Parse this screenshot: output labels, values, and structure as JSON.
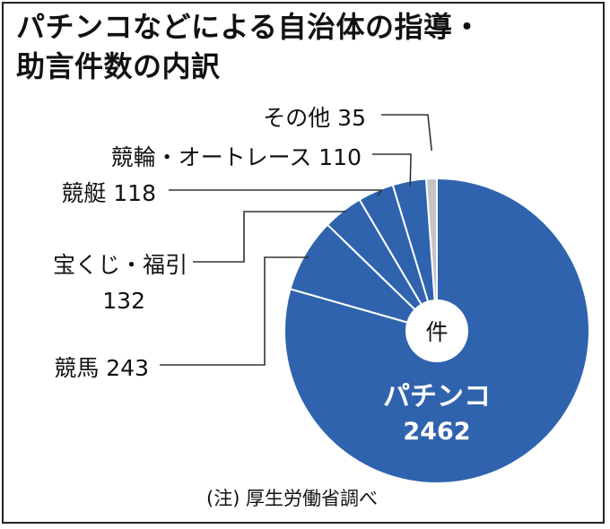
{
  "title_line1": "パチンコなどによる自治体の指導・",
  "title_line2": "助言件数の内訳",
  "source": "(注) 厚生労働省調べ",
  "center_label": "件",
  "colors": {
    "main": "#2f63ae",
    "other": "#c4c4c4",
    "edge": "#ffffff",
    "leader": "#333333"
  },
  "chart_data": {
    "type": "pie",
    "unit": "件",
    "title": "パチンコなどによる自治体の指導・助言件数の内訳",
    "slices": [
      {
        "name": "その他",
        "value": 35,
        "label": "その他 35"
      },
      {
        "name": "競輪・オートレース",
        "value": 110,
        "label": "競輪・オートレース 110"
      },
      {
        "name": "競艇",
        "value": 118,
        "label": "競艇 118"
      },
      {
        "name": "宝くじ・福引",
        "value": 132,
        "label": "宝くじ・福引",
        "value_label": "132"
      },
      {
        "name": "競馬",
        "value": 243,
        "label": "競馬 243"
      },
      {
        "name": "パチンコ",
        "value": 2462,
        "label": "パチンコ",
        "value_label": "2462"
      }
    ]
  }
}
